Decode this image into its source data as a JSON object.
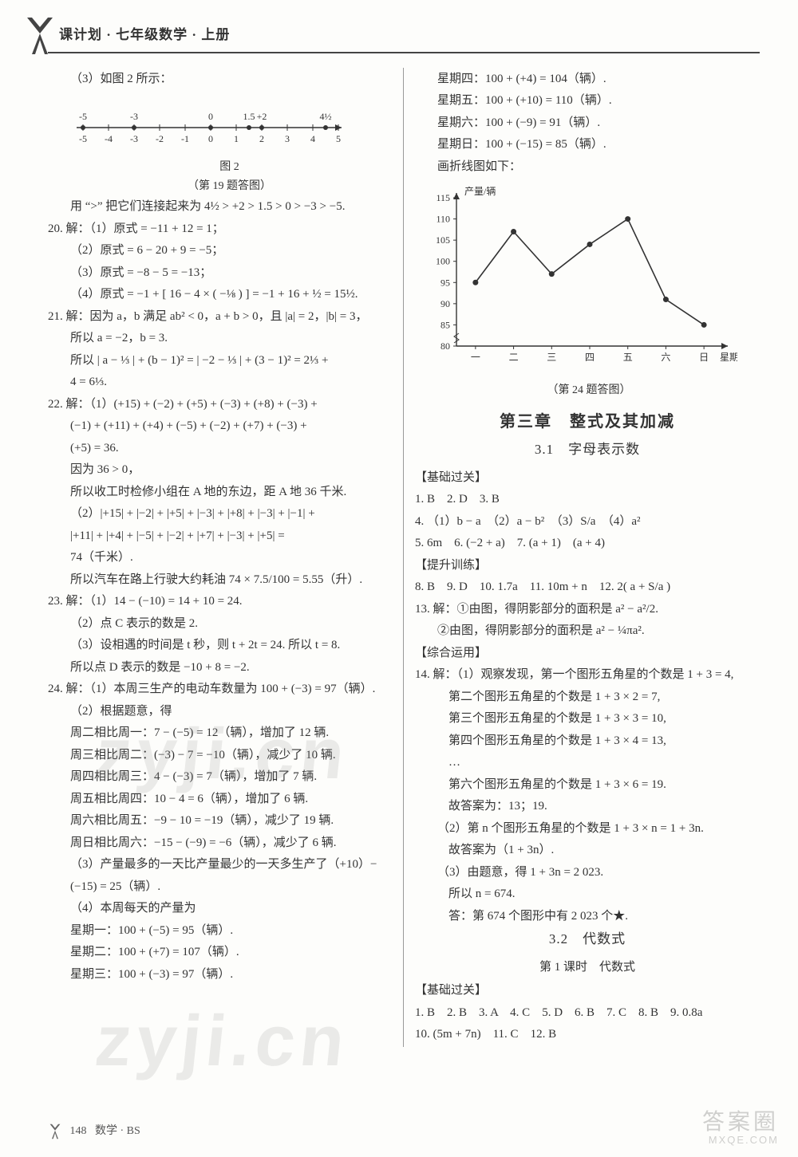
{
  "header": {
    "title": "课计划 · 七年级数学 · 上册"
  },
  "watermark": "zyji.cn",
  "footer": {
    "page": "148",
    "book": "数学 · BS"
  },
  "corner_brand": {
    "big": "答案圈",
    "small": "MXQE.COM"
  },
  "left": {
    "p3_intro": "（3）如图 2 所示：",
    "numberline": {
      "xmin": -5,
      "xmax": 5,
      "ticks": [
        -5,
        -4,
        -3,
        -2,
        -1,
        0,
        1,
        2,
        3,
        4,
        5
      ],
      "top_labels": [
        {
          "x": -5,
          "t": "-5"
        },
        {
          "x": -3,
          "t": "-3"
        },
        {
          "x": 0,
          "t": "0"
        },
        {
          "x": 1.5,
          "t": "1.5"
        },
        {
          "x": 2,
          "t": "+2"
        },
        {
          "x": 4.5,
          "t": "4½"
        }
      ],
      "fig_label": "图 2",
      "caption": "（第 19 题答图）"
    },
    "p3_line": "用 “>” 把它们连接起来为 4½ > +2 > 1.5 > 0 > −3 > −5.",
    "q20": {
      "lead": "20. 解：（1）原式 = −11 + 12 = 1；",
      "b": "（2）原式 = 6 − 20 + 9 = −5；",
      "c": "（3）原式 = −8 − 5 = −13；",
      "d": "（4）原式 = −1 + [ 16 − 4 × ( −⅛ ) ] = −1 + 16 + ½ = 15½."
    },
    "q21": {
      "a": "21. 解：因为 a，b 满足 ab² < 0，a + b > 0，且 |a| = 2，|b| = 3，",
      "b": "所以 a = −2，b = 3.",
      "c": "所以 | a − ⅓ | + (b − 1)² = | −2 − ⅓ | + (3 − 1)² = 2⅓ +",
      "d": "4 = 6⅓."
    },
    "q22": {
      "a": "22. 解：（1）(+15) + (−2) + (+5) + (−3) + (+8) + (−3) +",
      "b": "(−1) + (+11) + (+4) + (−5) + (−2) + (+7) + (−3) +",
      "c": "(+5) = 36.",
      "d": "因为 36 > 0，",
      "e": "所以收工时检修小组在 A 地的东边，距 A 地 36 千米.",
      "f": "（2）|+15| + |−2| + |+5| + |−3| + |+8| + |−3| + |−1| +",
      "g": "|+11| + |+4| + |−5| + |−2| + |+7| + |−3| + |+5| =",
      "h": "74（千米）.",
      "i": "所以汽车在路上行驶大约耗油 74 × 7.5/100 = 5.55（升）."
    },
    "q23": {
      "a": "23. 解：（1）14 − (−10) = 14 + 10 = 24.",
      "b": "（2）点 C 表示的数是 2.",
      "c": "（3）设相遇的时间是 t 秒，则 t + 2t = 24. 所以 t = 8.",
      "d": "所以点 D 表示的数是 −10 + 8 = −2."
    },
    "q24": {
      "a": "24. 解：（1）本周三生产的电动车数量为 100 + (−3) = 97（辆）.",
      "b": "（2）根据题意，得",
      "c": "周二相比周一：7 − (−5) = 12（辆），增加了 12 辆.",
      "d": "周三相比周二：(−3) − 7 = −10（辆），减少了 10 辆.",
      "e": "周四相比周三：4 − (−3) = 7（辆），增加了 7 辆.",
      "f": "周五相比周四：10 − 4 = 6（辆），增加了 6 辆.",
      "g": "周六相比周五：−9 − 10 = −19（辆），减少了 19 辆.",
      "h": "周日相比周六：−15 − (−9) = −6（辆），减少了 6 辆.",
      "i": "（3）产量最多的一天比产量最少的一天多生产了（+10）−",
      "j": "(−15) = 25（辆）.",
      "k": "（4）本周每天的产量为",
      "l": "星期一：100 + (−5) = 95（辆）.",
      "m": "星期二：100 + (+7) = 107（辆）.",
      "n": "星期三：100 + (−3) = 97（辆）."
    }
  },
  "right": {
    "days_cont": {
      "a": "星期四：100 + (+4) = 104（辆）.",
      "b": "星期五：100 + (+10) = 110（辆）.",
      "c": "星期六：100 + (−9) = 91（辆）.",
      "d": "星期日：100 + (−15) = 85（辆）.",
      "e": "画折线图如下："
    },
    "chart": {
      "type": "line",
      "y_label": "产量/辆",
      "x_label": "星期",
      "categories": [
        "一",
        "二",
        "三",
        "四",
        "五",
        "六",
        "日"
      ],
      "values": [
        95,
        107,
        97,
        104,
        110,
        91,
        85
      ],
      "ylim": [
        80,
        115
      ],
      "ytick_step": 5,
      "yticks": [
        80,
        85,
        90,
        95,
        100,
        105,
        110,
        115
      ],
      "line_color": "#333333",
      "marker_color": "#333333",
      "background": "#fdfdfb",
      "axis_color": "#333333",
      "font_size": 12,
      "line_width": 1.6,
      "marker_size": 3.5,
      "caption": "（第 24 题答图）"
    },
    "chapter": "第三章　整式及其加减",
    "sec31": "3.1　字母表示数",
    "basics_label": "【基础过关】",
    "basics": {
      "r1": "1. B　2. D　3. B",
      "r2": "4. （1）b − a　（2）a − b²　（3）S/a　（4）a²",
      "r3": "5. 6m　6. (−2 + a)　7. (a + 1)　(a + 4)"
    },
    "improve_label": "【提升训练】",
    "improve": {
      "r1": "8. B　9. D　10. 1.7a　11. 10m + n　12. 2( a + S/a )",
      "r2": "13. 解：①由图，得阴影部分的面积是 a² − a²/2.",
      "r3": "②由图，得阴影部分的面积是 a² − ¼πa²."
    },
    "apply_label": "【综合运用】",
    "apply": {
      "a": "14. 解：（1）观察发现，第一个图形五角星的个数是 1 + 3 = 4,",
      "b": "第二个图形五角星的个数是 1 + 3 × 2 = 7,",
      "c": "第三个图形五角星的个数是 1 + 3 × 3 = 10,",
      "d": "第四个图形五角星的个数是 1 + 3 × 4 = 13,",
      "e": "…",
      "f": "第六个图形五角星的个数是 1 + 3 × 6 = 19.",
      "g": "故答案为：13；19.",
      "h": "（2）第 n 个图形五角星的个数是 1 + 3 × n = 1 + 3n.",
      "i": "故答案为（1 + 3n）.",
      "j": "（3）由题意，得 1 + 3n = 2 023.",
      "k": "所以 n = 674.",
      "l": "答：第 674 个图形中有 2 023 个★."
    },
    "sec32": "3.2　代数式",
    "lesson1": "第 1 课时　代数式",
    "basics2_label": "【基础过关】",
    "basics2": {
      "r1": "1. B　2. B　3. A　4. C　5. D　6. B　7. C　8. B　9. 0.8a",
      "r2": "10. (5m + 7n)　11. C　12. B"
    }
  }
}
